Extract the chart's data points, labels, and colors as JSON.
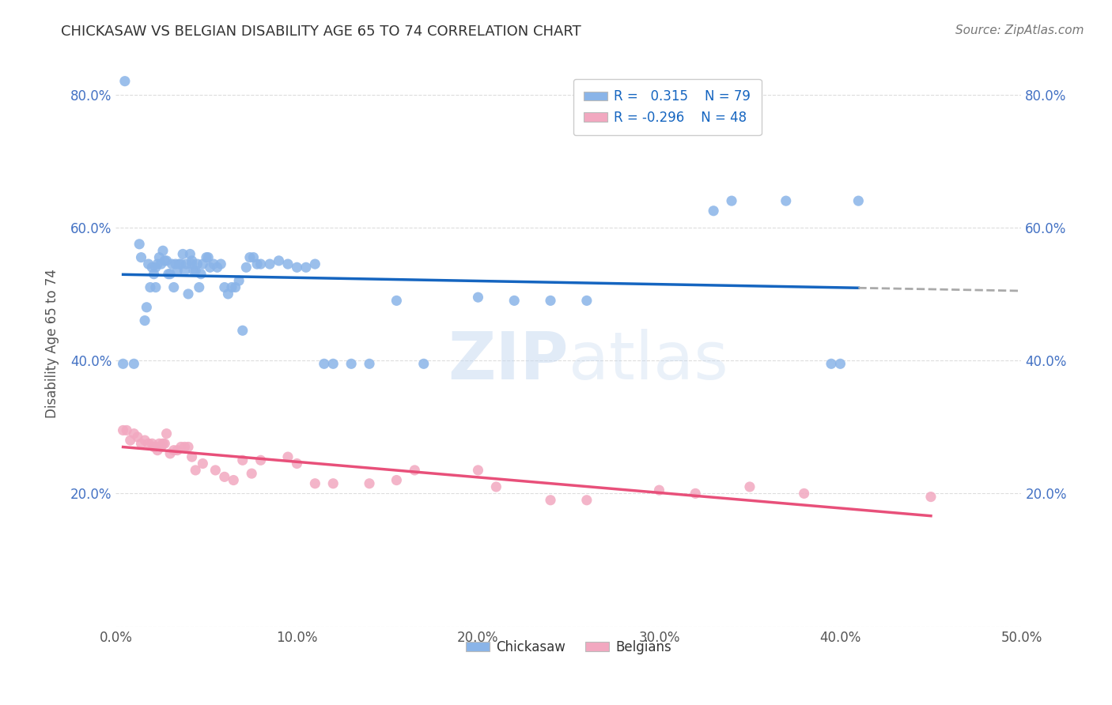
{
  "title": "CHICKASAW VS BELGIAN DISABILITY AGE 65 TO 74 CORRELATION CHART",
  "source_text": "Source: ZipAtlas.com",
  "ylabel": "Disability Age 65 to 74",
  "xlim": [
    0.0,
    0.5
  ],
  "ylim": [
    0.0,
    0.85
  ],
  "x_ticks": [
    0.0,
    0.1,
    0.2,
    0.3,
    0.4,
    0.5
  ],
  "x_tick_labels": [
    "0.0%",
    "10.0%",
    "20.0%",
    "30.0%",
    "40.0%",
    "50.0%"
  ],
  "y_ticks": [
    0.0,
    0.2,
    0.4,
    0.6,
    0.8
  ],
  "y_tick_labels": [
    "",
    "20.0%",
    "40.0%",
    "60.0%",
    "80.0%"
  ],
  "chickasaw_color": "#8AB4E8",
  "belgians_color": "#F2A8C0",
  "trendline1_color": "#1565C0",
  "trendline2_color": "#E8507A",
  "dashed_color": "#AAAAAA",
  "watermark_color": "#C5D8F0",
  "chickasaw_x": [
    0.004,
    0.005,
    0.01,
    0.013,
    0.014,
    0.016,
    0.017,
    0.018,
    0.019,
    0.02,
    0.021,
    0.022,
    0.022,
    0.023,
    0.024,
    0.025,
    0.026,
    0.027,
    0.028,
    0.029,
    0.03,
    0.031,
    0.032,
    0.033,
    0.034,
    0.035,
    0.036,
    0.037,
    0.038,
    0.039,
    0.04,
    0.041,
    0.042,
    0.042,
    0.043,
    0.044,
    0.045,
    0.046,
    0.047,
    0.048,
    0.05,
    0.051,
    0.052,
    0.054,
    0.056,
    0.058,
    0.06,
    0.062,
    0.064,
    0.066,
    0.068,
    0.07,
    0.072,
    0.074,
    0.076,
    0.078,
    0.08,
    0.085,
    0.09,
    0.095,
    0.1,
    0.105,
    0.11,
    0.115,
    0.12,
    0.13,
    0.14,
    0.155,
    0.17,
    0.2,
    0.22,
    0.24,
    0.26,
    0.33,
    0.34,
    0.37,
    0.395,
    0.4,
    0.41
  ],
  "chickasaw_y": [
    0.395,
    0.82,
    0.395,
    0.575,
    0.555,
    0.46,
    0.48,
    0.545,
    0.51,
    0.54,
    0.53,
    0.54,
    0.51,
    0.545,
    0.555,
    0.545,
    0.565,
    0.55,
    0.55,
    0.53,
    0.53,
    0.545,
    0.51,
    0.545,
    0.535,
    0.545,
    0.545,
    0.56,
    0.535,
    0.545,
    0.5,
    0.56,
    0.545,
    0.55,
    0.535,
    0.535,
    0.545,
    0.51,
    0.53,
    0.545,
    0.555,
    0.555,
    0.54,
    0.545,
    0.54,
    0.545,
    0.51,
    0.5,
    0.51,
    0.51,
    0.52,
    0.445,
    0.54,
    0.555,
    0.555,
    0.545,
    0.545,
    0.545,
    0.55,
    0.545,
    0.54,
    0.54,
    0.545,
    0.395,
    0.395,
    0.395,
    0.395,
    0.49,
    0.395,
    0.495,
    0.49,
    0.49,
    0.49,
    0.625,
    0.64,
    0.64,
    0.395,
    0.395,
    0.64
  ],
  "belgians_x": [
    0.004,
    0.006,
    0.008,
    0.01,
    0.012,
    0.014,
    0.016,
    0.018,
    0.02,
    0.021,
    0.022,
    0.023,
    0.024,
    0.025,
    0.026,
    0.027,
    0.028,
    0.03,
    0.032,
    0.034,
    0.036,
    0.038,
    0.04,
    0.042,
    0.044,
    0.048,
    0.055,
    0.06,
    0.065,
    0.07,
    0.075,
    0.08,
    0.095,
    0.1,
    0.11,
    0.12,
    0.14,
    0.155,
    0.165,
    0.2,
    0.21,
    0.24,
    0.26,
    0.3,
    0.32,
    0.35,
    0.38,
    0.45
  ],
  "belgians_y": [
    0.295,
    0.295,
    0.28,
    0.29,
    0.285,
    0.275,
    0.28,
    0.275,
    0.275,
    0.27,
    0.27,
    0.265,
    0.275,
    0.27,
    0.275,
    0.275,
    0.29,
    0.26,
    0.265,
    0.265,
    0.27,
    0.27,
    0.27,
    0.255,
    0.235,
    0.245,
    0.235,
    0.225,
    0.22,
    0.25,
    0.23,
    0.25,
    0.255,
    0.245,
    0.215,
    0.215,
    0.215,
    0.22,
    0.235,
    0.235,
    0.21,
    0.19,
    0.19,
    0.205,
    0.2,
    0.21,
    0.2,
    0.195
  ]
}
